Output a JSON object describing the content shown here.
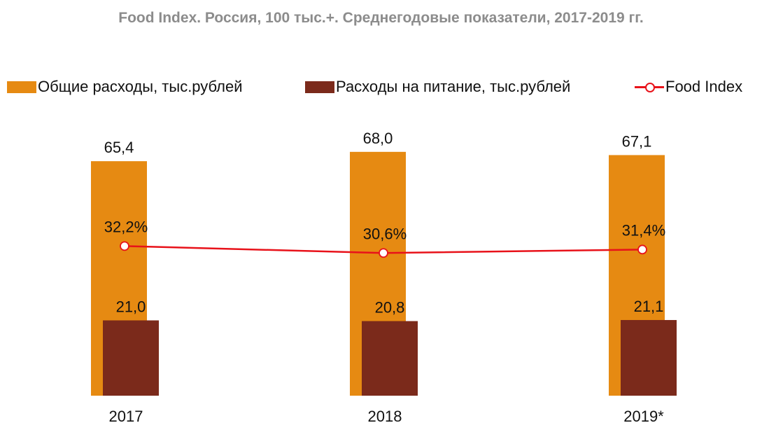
{
  "title": "Food Index. Россия, 100 тыс.+. Среднегодовые показатели, 2017-2019 гг.",
  "colors": {
    "total": "#e68a12",
    "food": "#7b2a1b",
    "index": "#e8121a",
    "title": "#8c8c8c"
  },
  "legend": {
    "total": "Общие расходы, тыс.рублей",
    "food": "Расходы на питание, тыс.рублей",
    "index": "Food Index"
  },
  "chart_data": {
    "type": "bar",
    "categories": [
      "2017",
      "2018",
      "2019*"
    ],
    "series": [
      {
        "name": "Общие расходы, тыс.рублей",
        "values": [
          65.4,
          68.0,
          67.1
        ],
        "labels": [
          "65,4",
          "68,0",
          "67,1"
        ]
      },
      {
        "name": "Расходы на питание, тыс.рублей",
        "values": [
          21.0,
          20.8,
          21.1
        ],
        "labels": [
          "21,0",
          "20,8",
          "21,1"
        ]
      },
      {
        "name": "Food Index",
        "type": "line",
        "values": [
          32.2,
          30.6,
          31.4
        ],
        "labels": [
          "32,2%",
          "30,6%",
          "31,4%"
        ]
      }
    ],
    "legend_position": "top",
    "grid": false
  }
}
